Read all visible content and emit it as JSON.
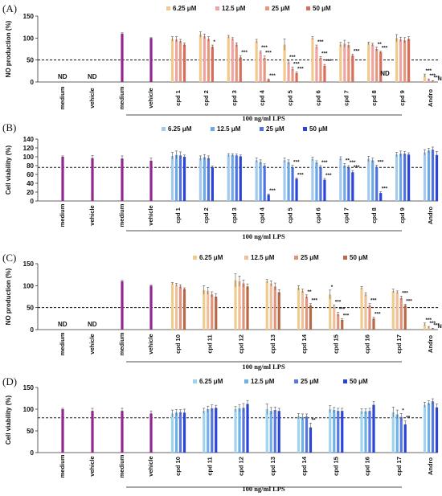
{
  "chart_data": [
    {
      "panel": "(A)",
      "type": "bar",
      "ylabel": "NO production (%)",
      "ylim": [
        0,
        150
      ],
      "yticks": [
        0,
        50,
        100,
        150
      ],
      "threshold": 50,
      "legend": [
        "6.25 μM",
        "12.5 μM",
        "25 μM",
        "50 μM"
      ],
      "legend_position": "top-right",
      "colors": [
        "#f2c98a",
        "#f0a3a3",
        "#e6977c",
        "#d66e5b"
      ],
      "control_color": "#92278f",
      "group_label": "100 ng/ml LPS",
      "controls": [
        {
          "label": "medium",
          "value": 0,
          "note": "ND"
        },
        {
          "label": "vehicle",
          "value": 0,
          "note": "ND"
        },
        {
          "label": "medium",
          "value": 110,
          "err": 2
        },
        {
          "label": "vehicle",
          "value": 100,
          "err": 1
        }
      ],
      "compounds": [
        {
          "label": "cpd 1",
          "values": [
            98,
            97,
            93,
            85
          ],
          "errs": [
            5,
            6,
            4,
            4
          ],
          "ann": [
            "",
            "",
            "",
            ""
          ]
        },
        {
          "label": "cpd 2",
          "values": [
            108,
            104,
            98,
            80
          ],
          "errs": [
            6,
            5,
            5,
            4
          ],
          "ann": [
            "",
            "",
            "",
            "*"
          ]
        },
        {
          "label": "cpd 3",
          "values": [
            103,
            98,
            85,
            56
          ],
          "errs": [
            3,
            3,
            4,
            4
          ],
          "ann": [
            "",
            "",
            "",
            "***"
          ]
        },
        {
          "label": "cpd 4",
          "values": [
            93,
            68,
            55,
            5
          ],
          "errs": [
            4,
            3,
            4,
            2
          ],
          "ann": [
            "",
            "***",
            "***",
            "***"
          ]
        },
        {
          "label": "cpd 5",
          "values": [
            85,
            45,
            30,
            20
          ],
          "errs": [
            13,
            4,
            4,
            3
          ],
          "ann": [
            "",
            "***",
            "***",
            "***"
          ]
        },
        {
          "label": "cpd 6",
          "values": [
            100,
            80,
            55,
            37
          ],
          "errs": [
            3,
            4,
            3,
            3
          ],
          "ann": [
            "",
            "***",
            "***",
            "***"
          ]
        },
        {
          "label": "cpd 7",
          "values": [
            85,
            87,
            84,
            60
          ],
          "errs": [
            5,
            8,
            6,
            3
          ],
          "ann": [
            "",
            "",
            "",
            "***"
          ]
        },
        {
          "label": "cpd 8",
          "values": [
            88,
            85,
            75,
            68
          ],
          "errs": [
            3,
            3,
            4,
            2
          ],
          "ann": [
            "",
            "",
            "**",
            "***"
          ],
          "note": "ND"
        },
        {
          "label": "cpd 9",
          "values": [
            100,
            97,
            95,
            98
          ],
          "errs": [
            8,
            5,
            6,
            5
          ],
          "ann": [
            "",
            "",
            "",
            ""
          ]
        },
        {
          "label": "Andro",
          "values": [
            15,
            5,
            2,
            0
          ],
          "errs": [
            3,
            2,
            1,
            0
          ],
          "ann": [
            "***",
            "***",
            "***",
            "ND"
          ]
        }
      ]
    },
    {
      "panel": "(B)",
      "type": "bar",
      "ylabel": "Cell viability (%)",
      "ylim": [
        0,
        140
      ],
      "yticks": [
        0,
        20,
        40,
        60,
        80,
        100,
        120,
        140
      ],
      "threshold": 76,
      "legend": [
        "6.25 μM",
        "12.5 μM",
        "25 μM",
        "50 μM"
      ],
      "legend_position": "top-right",
      "colors": [
        "#a3c9ee",
        "#6ca7e8",
        "#4f72e0",
        "#2a43d8"
      ],
      "control_color": "#92278f",
      "group_label": "100 ng/ml LPS",
      "controls": [
        {
          "label": "medium",
          "value": 100,
          "err": 2
        },
        {
          "label": "vehicle",
          "value": 97,
          "err": 6
        },
        {
          "label": "medium",
          "value": 96,
          "err": 6
        },
        {
          "label": "vehicle",
          "value": 91,
          "err": 6
        }
      ],
      "compounds": [
        {
          "label": "cpd 1",
          "values": [
            102,
            104,
            103,
            100
          ],
          "errs": [
            8,
            9,
            8,
            4
          ],
          "ann": [
            "",
            "",
            "",
            ""
          ]
        },
        {
          "label": "cpd 2",
          "values": [
            97,
            99,
            97,
            76
          ],
          "errs": [
            5,
            6,
            5,
            3
          ],
          "ann": [
            "",
            "",
            "",
            ""
          ]
        },
        {
          "label": "cpd 3",
          "values": [
            104,
            104,
            103,
            101
          ],
          "errs": [
            3,
            3,
            3,
            3
          ],
          "ann": [
            "",
            "",
            "",
            ""
          ]
        },
        {
          "label": "cpd 4",
          "values": [
            92,
            88,
            80,
            14
          ],
          "errs": [
            5,
            5,
            4,
            2
          ],
          "ann": [
            "",
            "",
            "",
            "***"
          ]
        },
        {
          "label": "cpd 5",
          "values": [
            92,
            88,
            76,
            50
          ],
          "errs": [
            5,
            5,
            5,
            2
          ],
          "ann": [
            "",
            "",
            "***",
            "***"
          ]
        },
        {
          "label": "cpd 6",
          "values": [
            95,
            87,
            76,
            48
          ],
          "errs": [
            4,
            4,
            4,
            3
          ],
          "ann": [
            "",
            "",
            "***",
            "***"
          ]
        },
        {
          "label": "cpd 7",
          "values": [
            96,
            80,
            75,
            65
          ],
          "errs": [
            4,
            5,
            5,
            4
          ],
          "ann": [
            "",
            "**",
            "***",
            "***"
          ]
        },
        {
          "label": "cpd 8",
          "values": [
            95,
            92,
            77,
            18
          ],
          "errs": [
            6,
            5,
            4,
            3
          ],
          "ann": [
            "",
            "",
            "***",
            "***"
          ]
        },
        {
          "label": "cpd 9",
          "values": [
            105,
            107,
            107,
            105
          ],
          "errs": [
            5,
            6,
            5,
            4
          ],
          "ann": [
            "",
            "",
            "",
            ""
          ]
        },
        {
          "label": "Andro",
          "values": [
            110,
            114,
            116,
            104
          ],
          "errs": [
            6,
            5,
            6,
            8
          ],
          "ann": [
            "",
            "",
            "",
            ""
          ]
        }
      ]
    },
    {
      "panel": "(C)",
      "type": "bar",
      "ylabel": "NO production (%)",
      "ylim": [
        0,
        150
      ],
      "yticks": [
        0,
        50,
        100,
        150
      ],
      "threshold": 50,
      "legend": [
        "6.25 μM",
        "12.5 μM",
        "25 μM",
        "50 μM"
      ],
      "legend_position": "top-right",
      "colors": [
        "#f0cb8e",
        "#f0bf9a",
        "#e0947c",
        "#b76a45"
      ],
      "control_color": "#92278f",
      "group_label": "100 ng/ml LPS",
      "controls": [
        {
          "label": "medium",
          "value": 0,
          "note": "ND"
        },
        {
          "label": "vehicle",
          "value": 0,
          "note": "ND"
        },
        {
          "label": "medium",
          "value": 110,
          "err": 2
        },
        {
          "label": "vehicle",
          "value": 100,
          "err": 1
        }
      ],
      "compounds": [
        {
          "label": "cpd 10",
          "values": [
            105,
            102,
            98,
            92
          ],
          "errs": [
            2,
            3,
            4,
            3
          ],
          "ann": [
            "",
            "",
            "",
            ""
          ]
        },
        {
          "label": "cpd 11",
          "values": [
            90,
            88,
            80,
            75
          ],
          "errs": [
            10,
            8,
            6,
            7
          ],
          "ann": [
            "",
            "",
            "",
            ""
          ]
        },
        {
          "label": "cpd 12",
          "values": [
            112,
            110,
            105,
            98
          ],
          "errs": [
            15,
            12,
            8,
            6
          ],
          "ann": [
            "",
            "",
            "",
            ""
          ]
        },
        {
          "label": "cpd 13",
          "values": [
            110,
            105,
            98,
            85
          ],
          "errs": [
            4,
            6,
            8,
            6
          ],
          "ann": [
            "",
            "",
            "",
            ""
          ]
        },
        {
          "label": "cpd 14",
          "values": [
            95,
            88,
            75,
            55
          ],
          "errs": [
            5,
            4,
            4,
            4
          ],
          "ann": [
            "",
            "",
            "**",
            "***"
          ]
        },
        {
          "label": "cpd 15",
          "values": [
            80,
            52,
            35,
            22
          ],
          "errs": [
            10,
            4,
            4,
            3
          ],
          "ann": [
            "*",
            "***",
            "***",
            "***"
          ]
        },
        {
          "label": "cpd 16",
          "values": [
            95,
            80,
            55,
            25
          ],
          "errs": [
            3,
            4,
            4,
            3
          ],
          "ann": [
            "",
            "",
            "***",
            "***"
          ]
        },
        {
          "label": "cpd 17",
          "values": [
            88,
            85,
            72,
            55
          ],
          "errs": [
            4,
            3,
            4,
            3
          ],
          "ann": [
            "",
            "",
            "***",
            "***"
          ]
        },
        {
          "label": "Andro",
          "values": [
            12,
            5,
            2,
            0
          ],
          "errs": [
            3,
            2,
            1,
            0
          ],
          "ann": [
            "***",
            "***",
            "***",
            "ND"
          ]
        }
      ]
    },
    {
      "panel": "(D)",
      "type": "bar",
      "ylabel": "Cell viability (%)",
      "ylim": [
        0,
        150
      ],
      "yticks": [
        0,
        50,
        100,
        150
      ],
      "threshold": 80,
      "legend": [
        "6.25 μM",
        "12.5 μM",
        "25 μM",
        "50 μM"
      ],
      "legend_position": "top-right",
      "colors": [
        "#9fd4ef",
        "#6eb0ea",
        "#5676e0",
        "#2a43d8"
      ],
      "control_color": "#92278f",
      "group_label": "100 ng/ml LPS",
      "controls": [
        {
          "label": "medium",
          "value": 100,
          "err": 2
        },
        {
          "label": "vehicle",
          "value": 96,
          "err": 6
        },
        {
          "label": "medium",
          "value": 96,
          "err": 6
        },
        {
          "label": "vehicle",
          "value": 90,
          "err": 6
        }
      ],
      "compounds": [
        {
          "label": "cpd 10",
          "values": [
            90,
            92,
            93,
            92
          ],
          "errs": [
            8,
            7,
            6,
            8
          ],
          "ann": [
            "",
            "",
            "",
            ""
          ]
        },
        {
          "label": "cpd 11",
          "values": [
            96,
            100,
            102,
            103
          ],
          "errs": [
            6,
            7,
            8,
            6
          ],
          "ann": [
            "",
            "",
            "",
            ""
          ]
        },
        {
          "label": "cpd 12",
          "values": [
            100,
            102,
            103,
            112
          ],
          "errs": [
            6,
            8,
            10,
            8
          ],
          "ann": [
            "",
            "",
            "",
            ""
          ]
        },
        {
          "label": "cpd 13",
          "values": [
            100,
            96,
            98,
            96
          ],
          "errs": [
            12,
            8,
            7,
            6
          ],
          "ann": [
            "",
            "",
            "",
            ""
          ]
        },
        {
          "label": "cpd 14",
          "values": [
            84,
            82,
            83,
            58
          ],
          "errs": [
            6,
            7,
            6,
            10
          ],
          "ann": [
            "",
            "",
            "",
            "**"
          ]
        },
        {
          "label": "cpd 15",
          "values": [
            100,
            98,
            96,
            96
          ],
          "errs": [
            8,
            6,
            6,
            6
          ],
          "ann": [
            "",
            "",
            "",
            ""
          ]
        },
        {
          "label": "cpd 16",
          "values": [
            95,
            95,
            96,
            110
          ],
          "errs": [
            6,
            6,
            6,
            8
          ],
          "ann": [
            "",
            "",
            "",
            ""
          ]
        },
        {
          "label": "cpd 17",
          "values": [
            93,
            88,
            82,
            65
          ],
          "errs": [
            12,
            10,
            8,
            8
          ],
          "ann": [
            "",
            "",
            "*",
            "**"
          ]
        },
        {
          "label": "Andro",
          "values": [
            110,
            114,
            118,
            104
          ],
          "errs": [
            6,
            5,
            6,
            8
          ],
          "ann": [
            "",
            "",
            "",
            ""
          ]
        }
      ]
    }
  ]
}
